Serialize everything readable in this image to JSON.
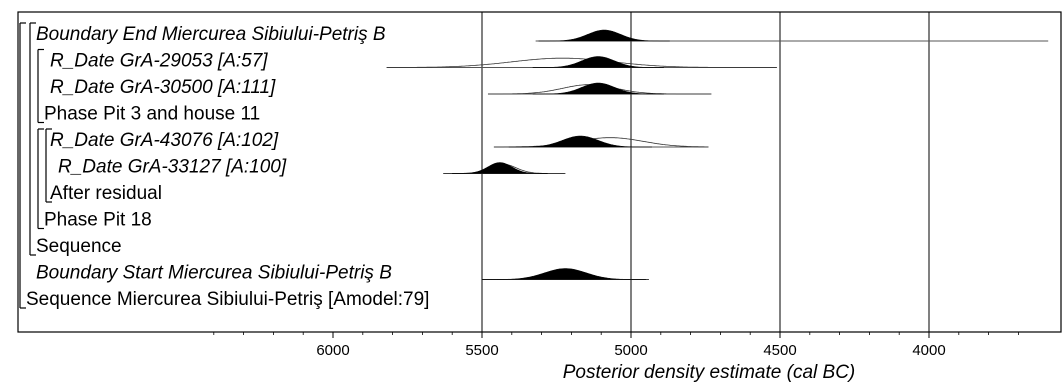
{
  "chart_data": {
    "type": "ox-cal-multiplot",
    "xlabel": "Posterior density estimate (cal BC)",
    "xlim": [
      6500,
      3600
    ],
    "x_ticks": [
      6000,
      5500,
      5000,
      4500,
      4000
    ],
    "x_tick_labels": [
      "6000",
      "5500",
      "5000",
      "4500",
      "4000"
    ],
    "gridlines": [
      5500,
      5000,
      4500,
      4000
    ],
    "rows": [
      {
        "label": "Boundary End Miercurea Sibiului-Petriş B",
        "italic": true,
        "level": 1,
        "range": [
          5320,
          3600
        ],
        "posterior": {
          "center": 5090,
          "sigma": 55,
          "tail": 0.5
        }
      },
      {
        "label": "R_Date GrA-29053 [A:57]",
        "italic": true,
        "level": 3,
        "range": [
          5820,
          4510
        ],
        "prior": {
          "center": 5230,
          "sigma": 170
        },
        "posterior": {
          "center": 5110,
          "sigma": 55
        }
      },
      {
        "label": "R_Date GrA-30500 [A:111]",
        "italic": true,
        "level": 3,
        "range": [
          5480,
          4730
        ],
        "prior": {
          "center": 5140,
          "sigma": 90
        },
        "posterior": {
          "center": 5110,
          "sigma": 55
        }
      },
      {
        "label": "Phase Pit 3 and house 11",
        "italic": false,
        "level": 2
      },
      {
        "label": "R_Date GrA-43076 [A:102]",
        "italic": true,
        "level": 3,
        "range": [
          5460,
          4740
        ],
        "prior": {
          "center": 5070,
          "sigma": 110
        },
        "posterior": {
          "center": 5170,
          "sigma": 60
        }
      },
      {
        "label": "R_Date GrA-33127 [A:100]",
        "italic": true,
        "level": 4,
        "range": [
          5630,
          5220
        ],
        "prior": {
          "center": 5430,
          "sigma": 45
        },
        "posterior": {
          "center": 5440,
          "sigma": 40
        }
      },
      {
        "label": "After residual",
        "italic": false,
        "level": 3
      },
      {
        "label": "Phase Pit 18",
        "italic": false,
        "level": 2
      },
      {
        "label": "Sequence",
        "italic": false,
        "level": 1
      },
      {
        "label": "Boundary Start Miercurea Sibiului-Petriş B",
        "italic": true,
        "level": 1,
        "range": [
          5500,
          4950
        ],
        "posterior": {
          "center": 5220,
          "sigma": 70
        }
      },
      {
        "label": "Sequence Miercurea Sibiului-Petriş [Amodel:79]",
        "italic": false,
        "level": 0
      }
    ]
  }
}
